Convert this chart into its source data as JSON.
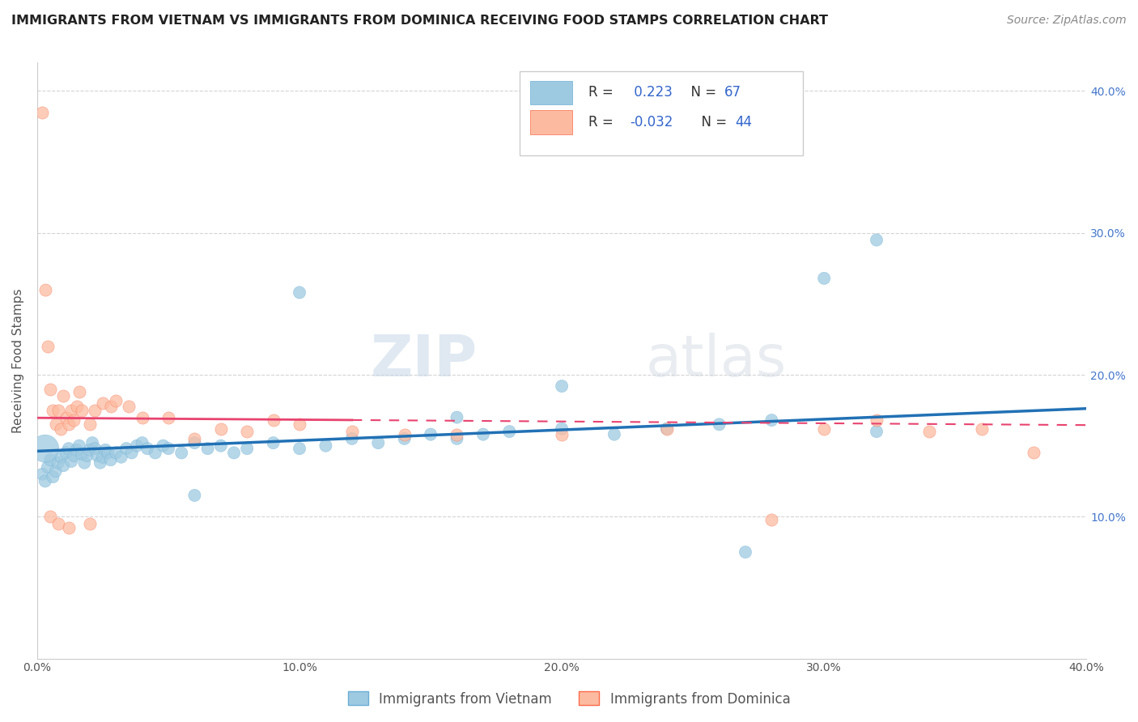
{
  "title": "IMMIGRANTS FROM VIETNAM VS IMMIGRANTS FROM DOMINICA RECEIVING FOOD STAMPS CORRELATION CHART",
  "source": "Source: ZipAtlas.com",
  "ylabel": "Receiving Food Stamps",
  "watermark_zip": "ZIP",
  "watermark_atlas": "atlas",
  "legend_line1_prefix": "R = ",
  "legend_line1_rval": " 0.223",
  "legend_line1_nval": " N = 67",
  "legend_line2_prefix": "R = ",
  "legend_line2_rval": "-0.032",
  "legend_line2_nval": " N = 44",
  "legend_labels": [
    "Immigrants from Vietnam",
    "Immigrants from Dominica"
  ],
  "vietnam_color": "#9ecae1",
  "vietnam_edge_color": "#6baed6",
  "dominica_color": "#fcbba1",
  "dominica_edge_color": "#fb6a4a",
  "vietnam_line_color": "#2171b5",
  "dominica_line_color": "#e8436f",
  "xlim": [
    0.0,
    0.4
  ],
  "ylim": [
    0.0,
    0.42
  ],
  "yticks": [
    0.1,
    0.2,
    0.3,
    0.4
  ],
  "xticks": [
    0.0,
    0.1,
    0.2,
    0.3,
    0.4
  ],
  "grid_color": "#d0d0d0",
  "background_color": "#ffffff",
  "vietnam_x": [
    0.002,
    0.003,
    0.004,
    0.005,
    0.006,
    0.007,
    0.008,
    0.009,
    0.01,
    0.011,
    0.012,
    0.013,
    0.014,
    0.015,
    0.016,
    0.017,
    0.018,
    0.019,
    0.02,
    0.021,
    0.022,
    0.023,
    0.024,
    0.025,
    0.026,
    0.027,
    0.028,
    0.03,
    0.032,
    0.034,
    0.036,
    0.038,
    0.04,
    0.042,
    0.045,
    0.048,
    0.05,
    0.055,
    0.06,
    0.065,
    0.07,
    0.075,
    0.08,
    0.09,
    0.1,
    0.11,
    0.12,
    0.13,
    0.14,
    0.15,
    0.16,
    0.17,
    0.18,
    0.2,
    0.22,
    0.24,
    0.26,
    0.28,
    0.3,
    0.32,
    0.003,
    0.1,
    0.2,
    0.32,
    0.27,
    0.16,
    0.06
  ],
  "vietnam_y": [
    0.13,
    0.125,
    0.135,
    0.14,
    0.128,
    0.132,
    0.138,
    0.142,
    0.136,
    0.145,
    0.148,
    0.139,
    0.143,
    0.147,
    0.15,
    0.144,
    0.138,
    0.143,
    0.147,
    0.152,
    0.148,
    0.143,
    0.138,
    0.142,
    0.147,
    0.145,
    0.14,
    0.145,
    0.142,
    0.148,
    0.145,
    0.15,
    0.152,
    0.148,
    0.145,
    0.15,
    0.148,
    0.145,
    0.152,
    0.148,
    0.15,
    0.145,
    0.148,
    0.152,
    0.148,
    0.15,
    0.155,
    0.152,
    0.155,
    0.158,
    0.155,
    0.158,
    0.16,
    0.162,
    0.158,
    0.162,
    0.165,
    0.168,
    0.268,
    0.16,
    0.148,
    0.258,
    0.192,
    0.295,
    0.075,
    0.17,
    0.115
  ],
  "vietnam_size_large": [
    60
  ],
  "vietnam_large_idx": [
    60
  ],
  "dominica_x": [
    0.002,
    0.003,
    0.004,
    0.005,
    0.006,
    0.007,
    0.008,
    0.009,
    0.01,
    0.011,
    0.012,
    0.013,
    0.014,
    0.015,
    0.016,
    0.017,
    0.02,
    0.022,
    0.025,
    0.028,
    0.03,
    0.035,
    0.04,
    0.05,
    0.06,
    0.07,
    0.08,
    0.09,
    0.1,
    0.12,
    0.14,
    0.16,
    0.2,
    0.24,
    0.28,
    0.3,
    0.32,
    0.34,
    0.36,
    0.38,
    0.005,
    0.008,
    0.012,
    0.02
  ],
  "dominica_y": [
    0.385,
    0.26,
    0.22,
    0.19,
    0.175,
    0.165,
    0.175,
    0.162,
    0.185,
    0.17,
    0.165,
    0.175,
    0.168,
    0.178,
    0.188,
    0.175,
    0.165,
    0.175,
    0.18,
    0.178,
    0.182,
    0.178,
    0.17,
    0.17,
    0.155,
    0.162,
    0.16,
    0.168,
    0.165,
    0.16,
    0.158,
    0.158,
    0.158,
    0.162,
    0.098,
    0.162,
    0.168,
    0.16,
    0.162,
    0.145,
    0.1,
    0.095,
    0.092,
    0.095
  ],
  "title_fontsize": 11.5,
  "source_fontsize": 10,
  "axis_label_fontsize": 11,
  "tick_fontsize": 10,
  "legend_fontsize": 12
}
